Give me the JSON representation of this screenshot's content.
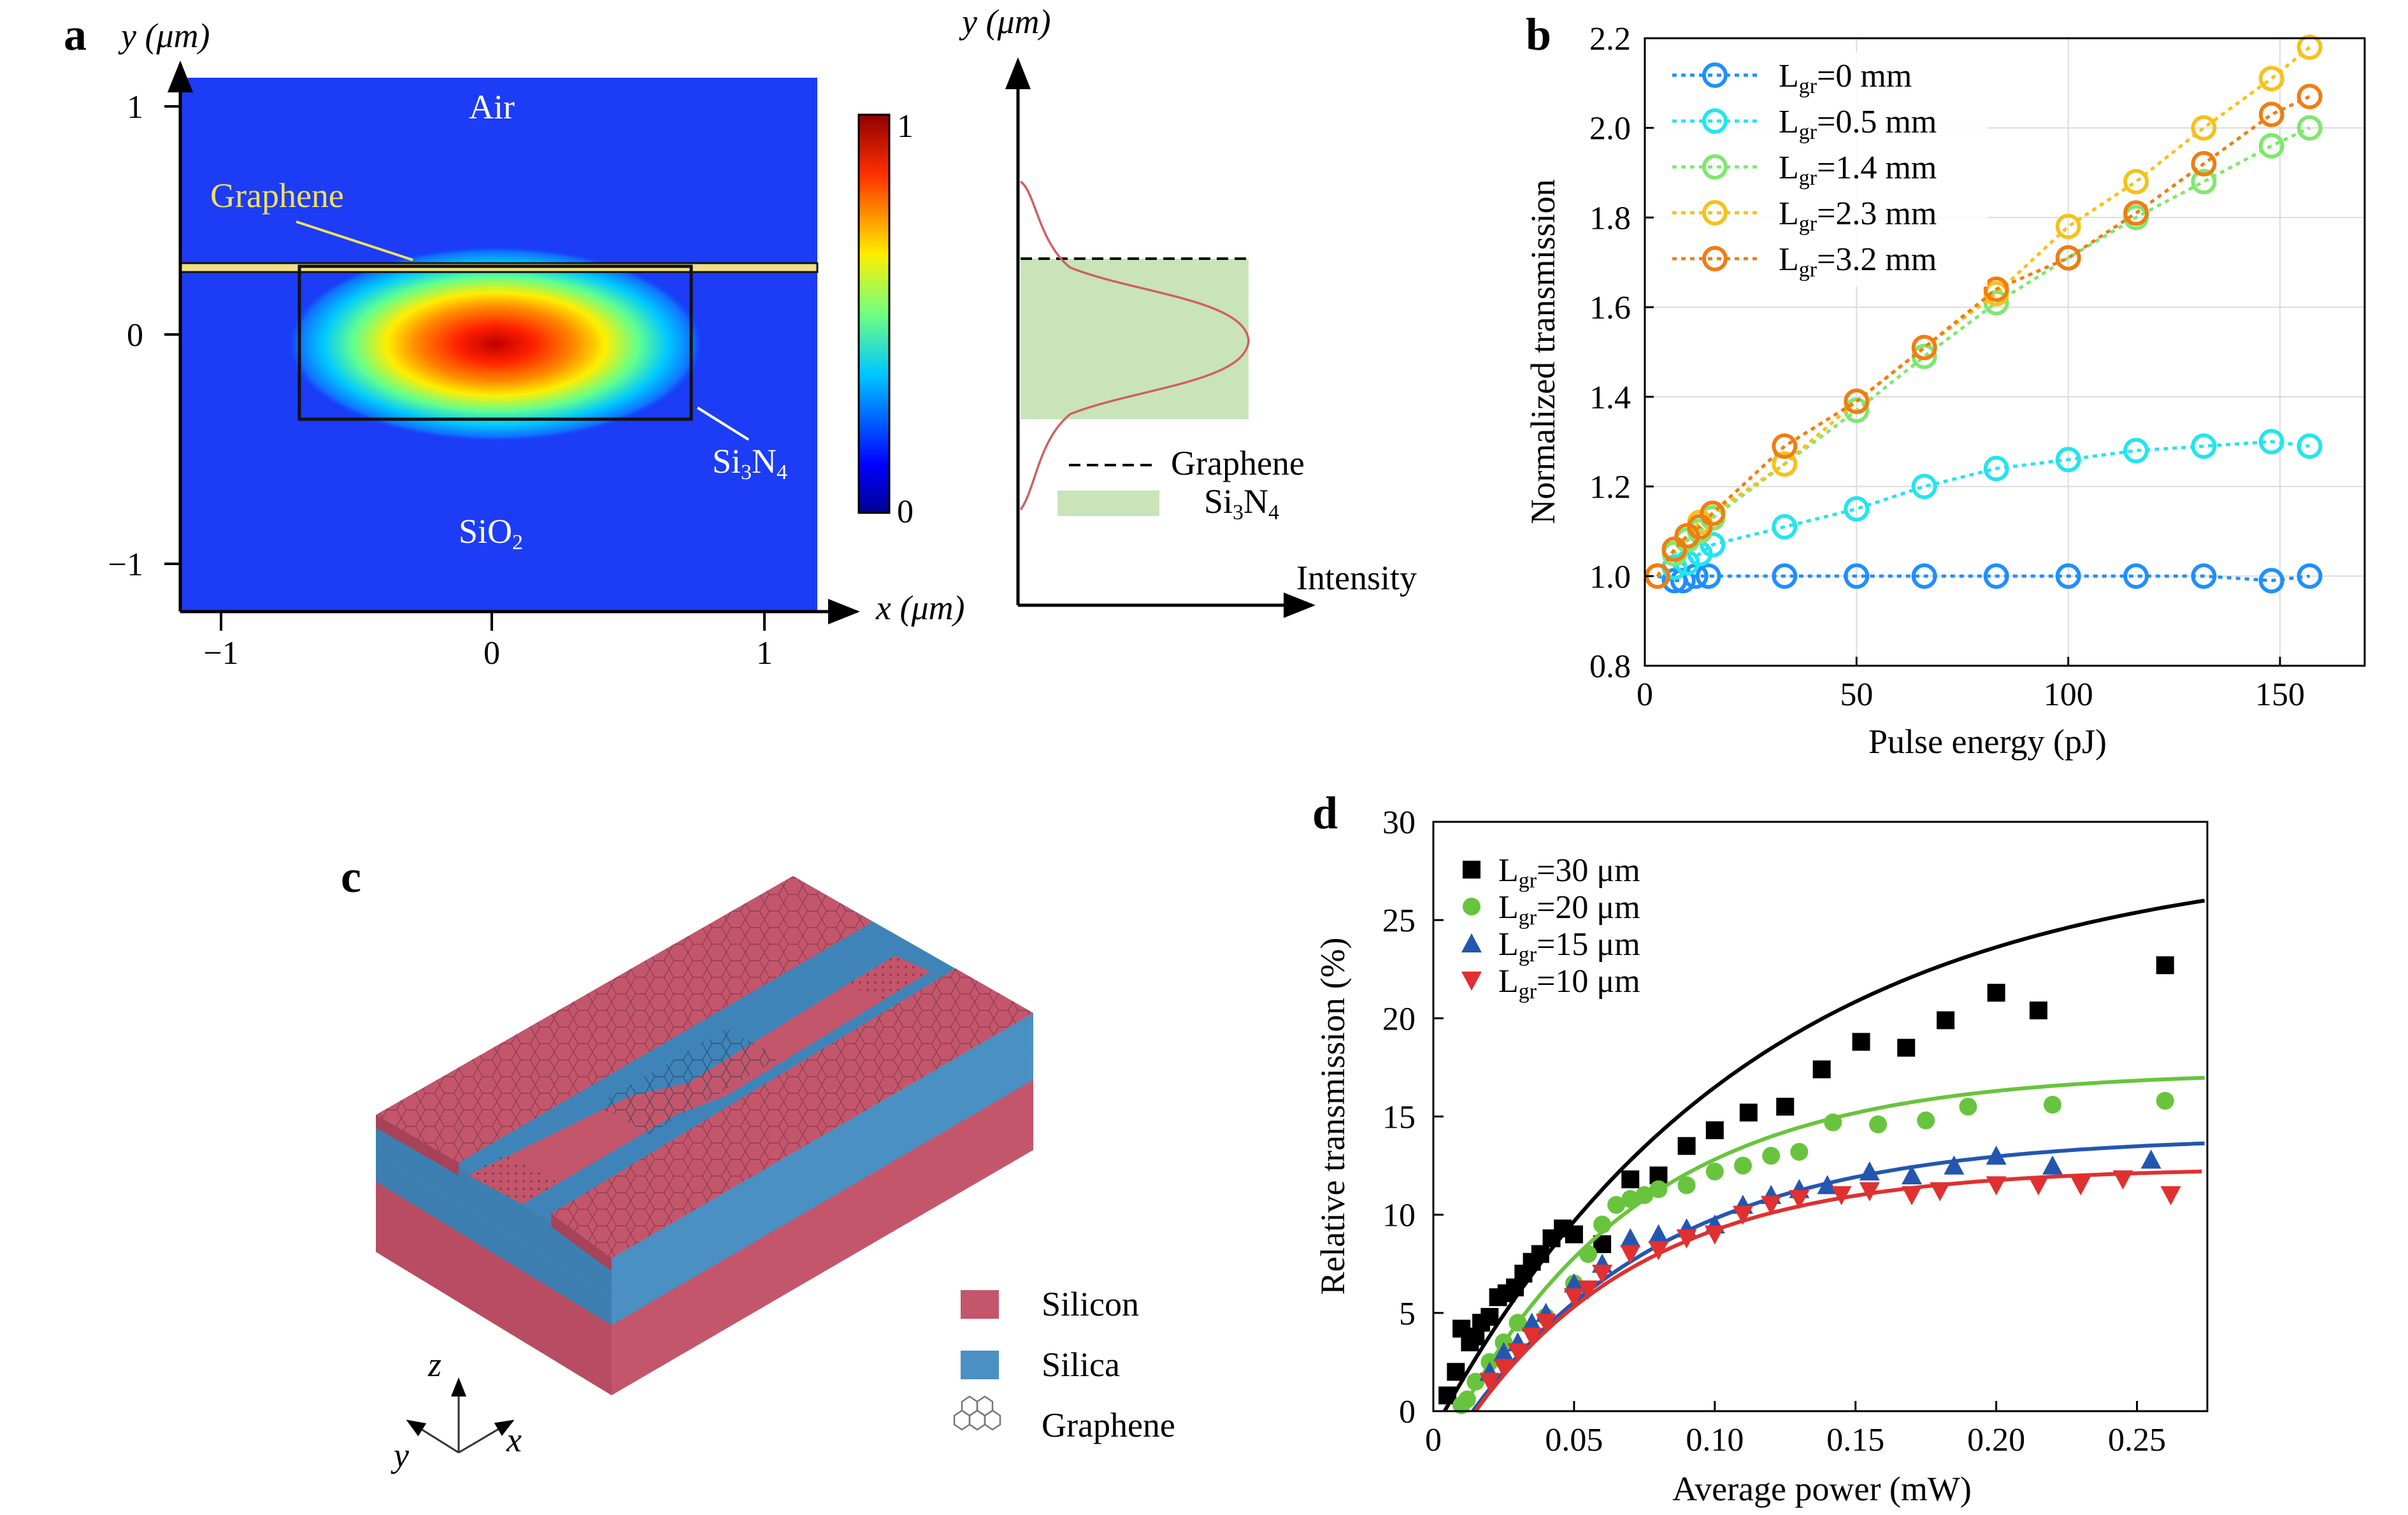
{
  "panel_a": {
    "letter": "a",
    "y_axis_label": "y (μm)",
    "x_axis_label": "x (μm)",
    "x_ticks": [
      "−1",
      "0",
      "1"
    ],
    "y_ticks": [
      "1",
      "0",
      "−1"
    ],
    "region_air": "Air",
    "region_sio2": "SiO",
    "region_sio2_sub": "2",
    "graphene_label": "Graphene",
    "si3n4_label": {
      "a": "Si",
      "b": "3",
      "c": "N",
      "d": "4"
    },
    "colorbar": {
      "max": "1",
      "min": "0"
    },
    "profile": {
      "y_axis_label": "y (μm)",
      "x_axis_label": "Intensity",
      "legend_graphene": "Graphene",
      "legend_si3n4": {
        "a": "Si",
        "b": "3",
        "c": "N",
        "d": "4"
      }
    }
  },
  "panel_b": {
    "letter": "b",
    "chart_data": {
      "type": "line",
      "xlabel": "Pulse energy (pJ)",
      "ylabel": "Normalized transmission",
      "xlim": [
        0,
        170
      ],
      "ylim": [
        0.8,
        2.2
      ],
      "x_ticks": [
        "0",
        "50",
        "100",
        "150"
      ],
      "y_ticks": [
        "0.8",
        "1.0",
        "1.2",
        "1.4",
        "1.6",
        "1.8",
        "2.0",
        "2.2"
      ],
      "grid": true,
      "legend_placement": "top-left",
      "series": [
        {
          "name": "L",
          "name_sub": "gr",
          "name_rest": "=0 mm",
          "color": "#1f8fff",
          "points": [
            [
              3,
              1.0
            ],
            [
              7,
              0.99
            ],
            [
              9,
              0.99
            ],
            [
              12,
              1.0
            ],
            [
              15,
              1.0
            ],
            [
              33,
              1.0
            ],
            [
              50,
              1.0
            ],
            [
              66,
              1.0
            ],
            [
              83,
              1.0
            ],
            [
              100,
              1.0
            ],
            [
              116,
              1.0
            ],
            [
              132,
              1.0
            ],
            [
              148,
              0.99
            ],
            [
              157,
              1.0
            ]
          ]
        },
        {
          "name": "L",
          "name_sub": "gr",
          "name_rest": "=0.5 mm",
          "color": "#22e5ee",
          "points": [
            [
              3,
              1.0
            ],
            [
              7,
              1.02
            ],
            [
              10,
              1.03
            ],
            [
              13,
              1.05
            ],
            [
              16,
              1.07
            ],
            [
              33,
              1.11
            ],
            [
              50,
              1.15
            ],
            [
              66,
              1.2
            ],
            [
              83,
              1.24
            ],
            [
              100,
              1.26
            ],
            [
              116,
              1.28
            ],
            [
              132,
              1.29
            ],
            [
              148,
              1.3
            ],
            [
              157,
              1.29
            ]
          ]
        },
        {
          "name": "L",
          "name_sub": "gr",
          "name_rest": "=1.4 mm",
          "color": "#7ee86e",
          "points": [
            [
              3,
              1.0
            ],
            [
              7,
              1.05
            ],
            [
              10,
              1.08
            ],
            [
              13,
              1.1
            ],
            [
              16,
              1.13
            ],
            [
              33,
              1.25
            ],
            [
              50,
              1.37
            ],
            [
              66,
              1.49
            ],
            [
              83,
              1.61
            ],
            [
              100,
              1.71
            ],
            [
              116,
              1.8
            ],
            [
              132,
              1.88
            ],
            [
              148,
              1.96
            ],
            [
              157,
              2.0
            ]
          ]
        },
        {
          "name": "L",
          "name_sub": "gr",
          "name_rest": "=2.3 mm",
          "color": "#f5c21b",
          "points": [
            [
              3,
              1.0
            ],
            [
              7,
              1.06
            ],
            [
              10,
              1.09
            ],
            [
              13,
              1.12
            ],
            [
              16,
              1.14
            ],
            [
              33,
              1.25
            ],
            [
              50,
              1.39
            ],
            [
              66,
              1.51
            ],
            [
              83,
              1.63
            ],
            [
              100,
              1.78
            ],
            [
              116,
              1.88
            ],
            [
              132,
              2.0
            ],
            [
              148,
              2.11
            ],
            [
              157,
              2.18
            ]
          ]
        },
        {
          "name": "L",
          "name_sub": "gr",
          "name_rest": "=3.2 mm",
          "color": "#f07d14",
          "points": [
            [
              3,
              1.0
            ],
            [
              7,
              1.06
            ],
            [
              10,
              1.09
            ],
            [
              13,
              1.11
            ],
            [
              16,
              1.14
            ],
            [
              33,
              1.29
            ],
            [
              50,
              1.39
            ],
            [
              66,
              1.51
            ],
            [
              83,
              1.64
            ],
            [
              100,
              1.71
            ],
            [
              116,
              1.81
            ],
            [
              132,
              1.92
            ],
            [
              148,
              2.03
            ],
            [
              157,
              2.07
            ]
          ]
        }
      ]
    }
  },
  "panel_c": {
    "letter": "c",
    "legend_silicon": "Silicon",
    "legend_silica": "Silica",
    "legend_graphene": "Graphene",
    "axis_z": "z",
    "axis_y": "y",
    "axis_x": "x",
    "colors": {
      "silicon": "#c4566c",
      "silicon_top": "#d4677d",
      "silica": "#4a90c2",
      "silica_top": "#3f84b8"
    }
  },
  "panel_d": {
    "letter": "d",
    "chart_data": {
      "type": "scatter",
      "xlabel": "Average power (mW)",
      "ylabel": "Relative transmission (%)",
      "xlim": [
        0,
        0.275
      ],
      "ylim": [
        0,
        30
      ],
      "x_ticks": [
        "0",
        "0.05",
        "0.10",
        "0.15",
        "0.20",
        "0.25"
      ],
      "y_ticks": [
        "0",
        "5",
        "10",
        "15",
        "20",
        "25",
        "30"
      ],
      "legend_placement": "top-left",
      "series": [
        {
          "name": "L",
          "name_sub": "gr",
          "name_rest": "=30 μm",
          "color": "#000000",
          "marker": "square",
          "points": [
            [
              0.005,
              0.8
            ],
            [
              0.008,
              2.0
            ],
            [
              0.01,
              4.2
            ],
            [
              0.013,
              3.5
            ],
            [
              0.015,
              3.8
            ],
            [
              0.017,
              4.5
            ],
            [
              0.02,
              4.8
            ],
            [
              0.023,
              5.8
            ],
            [
              0.026,
              6.0
            ],
            [
              0.029,
              6.3
            ],
            [
              0.032,
              7.0
            ],
            [
              0.035,
              7.6
            ],
            [
              0.038,
              8.0
            ],
            [
              0.042,
              8.8
            ],
            [
              0.046,
              9.3
            ],
            [
              0.05,
              9.0
            ],
            [
              0.06,
              8.5
            ],
            [
              0.07,
              11.8
            ],
            [
              0.08,
              12.0
            ],
            [
              0.09,
              13.5
            ],
            [
              0.1,
              14.3
            ],
            [
              0.112,
              15.2
            ],
            [
              0.125,
              15.5
            ],
            [
              0.138,
              17.4
            ],
            [
              0.152,
              18.8
            ],
            [
              0.168,
              18.5
            ],
            [
              0.182,
              19.9
            ],
            [
              0.2,
              21.3
            ],
            [
              0.215,
              20.4
            ],
            [
              0.26,
              22.7
            ]
          ],
          "fit": {
            "a": 28.5,
            "b": 9.0,
            "x0": 0.004
          }
        },
        {
          "name": "L",
          "name_sub": "gr",
          "name_rest": "=20 μm",
          "color": "#68c43c",
          "marker": "circle",
          "points": [
            [
              0.01,
              0.3
            ],
            [
              0.012,
              0.6
            ],
            [
              0.015,
              1.5
            ],
            [
              0.02,
              2.5
            ],
            [
              0.025,
              3.5
            ],
            [
              0.03,
              4.5
            ],
            [
              0.04,
              4.8
            ],
            [
              0.05,
              6.5
            ],
            [
              0.055,
              8.0
            ],
            [
              0.06,
              9.5
            ],
            [
              0.065,
              10.5
            ],
            [
              0.07,
              10.8
            ],
            [
              0.075,
              11.0
            ],
            [
              0.08,
              11.3
            ],
            [
              0.09,
              11.5
            ],
            [
              0.1,
              12.2
            ],
            [
              0.11,
              12.5
            ],
            [
              0.12,
              13.0
            ],
            [
              0.13,
              13.2
            ],
            [
              0.142,
              14.7
            ],
            [
              0.158,
              14.6
            ],
            [
              0.175,
              14.8
            ],
            [
              0.19,
              15.5
            ],
            [
              0.22,
              15.6
            ],
            [
              0.26,
              15.8
            ]
          ],
          "fit": {
            "a": 17.3,
            "b": 15.0,
            "x0": 0.01
          }
        },
        {
          "name": "L",
          "name_sub": "gr",
          "name_rest": "=15 μm",
          "color": "#2456b0",
          "marker": "triangle-up",
          "points": [
            [
              0.02,
              2.0
            ],
            [
              0.025,
              3.0
            ],
            [
              0.03,
              3.5
            ],
            [
              0.035,
              4.5
            ],
            [
              0.04,
              5.0
            ],
            [
              0.05,
              6.5
            ],
            [
              0.06,
              7.5
            ],
            [
              0.07,
              8.8
            ],
            [
              0.08,
              9.0
            ],
            [
              0.09,
              9.3
            ],
            [
              0.1,
              9.5
            ],
            [
              0.11,
              10.5
            ],
            [
              0.12,
              11.0
            ],
            [
              0.13,
              11.3
            ],
            [
              0.14,
              11.5
            ],
            [
              0.155,
              12.2
            ],
            [
              0.17,
              12.0
            ],
            [
              0.185,
              12.5
            ],
            [
              0.2,
              13.0
            ],
            [
              0.22,
              12.5
            ],
            [
              0.255,
              12.8
            ]
          ],
          "fit": {
            "a": 14.0,
            "b": 14.0,
            "x0": 0.014
          }
        },
        {
          "name": "L",
          "name_sub": "gr",
          "name_rest": "=10 μm",
          "color": "#e03030",
          "marker": "triangle-down",
          "points": [
            [
              0.02,
              1.5
            ],
            [
              0.025,
              2.2
            ],
            [
              0.03,
              3.0
            ],
            [
              0.035,
              3.8
            ],
            [
              0.04,
              4.5
            ],
            [
              0.05,
              5.8
            ],
            [
              0.055,
              6.2
            ],
            [
              0.06,
              7.0
            ],
            [
              0.07,
              8.0
            ],
            [
              0.08,
              8.2
            ],
            [
              0.09,
              8.8
            ],
            [
              0.1,
              9.0
            ],
            [
              0.11,
              10.0
            ],
            [
              0.12,
              10.5
            ],
            [
              0.13,
              10.8
            ],
            [
              0.145,
              11.0
            ],
            [
              0.155,
              11.2
            ],
            [
              0.17,
              11.0
            ],
            [
              0.18,
              11.2
            ],
            [
              0.2,
              11.5
            ],
            [
              0.215,
              11.5
            ],
            [
              0.23,
              11.5
            ],
            [
              0.245,
              11.8
            ],
            [
              0.262,
              11.0
            ]
          ],
          "fit": {
            "a": 12.4,
            "b": 16.0,
            "x0": 0.015
          }
        }
      ]
    }
  }
}
